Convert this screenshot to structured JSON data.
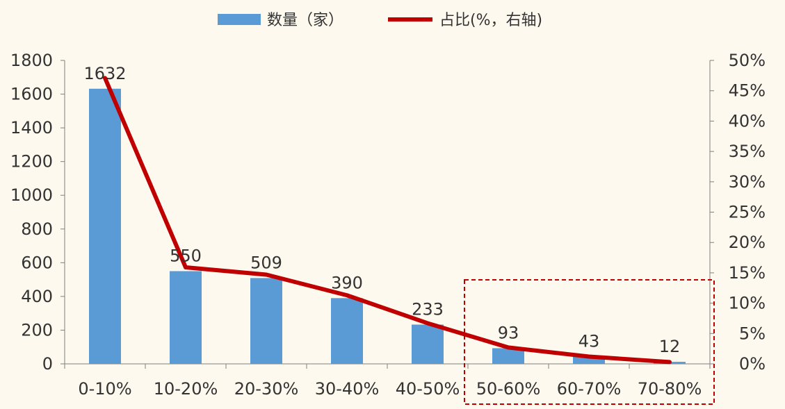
{
  "legend": {
    "bar_label": "数量（家）",
    "line_label": "占比(%，右轴)"
  },
  "colors": {
    "bar": "#5b9bd5",
    "line": "#c00000",
    "axis": "#7f7f7f",
    "highlight_box": "#c00000",
    "background": "#fdf9ee"
  },
  "chart_data": {
    "type": "bar",
    "categories": [
      "0-10%",
      "10-20%",
      "20-30%",
      "30-40%",
      "40-50%",
      "50-60%",
      "60-70%",
      "70-80%"
    ],
    "series": [
      {
        "name": "数量（家）",
        "type": "bar",
        "axis": "left",
        "values": [
          1632,
          550,
          509,
          390,
          233,
          93,
          43,
          12
        ]
      },
      {
        "name": "占比(%，右轴)",
        "type": "line",
        "axis": "right",
        "values": [
          47.1,
          15.9,
          14.7,
          11.3,
          6.7,
          2.7,
          1.2,
          0.3
        ]
      }
    ],
    "ylim": [
      0,
      1800
    ],
    "y_ticks": [
      "0",
      "200",
      "400",
      "600",
      "800",
      "1000",
      "1200",
      "1400",
      "1600",
      "1800"
    ],
    "y2lim": [
      0,
      50
    ],
    "y2_ticks": [
      "0%",
      "5%",
      "10%",
      "15%",
      "20%",
      "25%",
      "30%",
      "35%",
      "40%",
      "45%",
      "50%"
    ],
    "legend_position": "top-center",
    "grid": false,
    "highlight": {
      "style": "dashed-box",
      "from_category": "50-60%",
      "to_category": "70-80%"
    }
  }
}
